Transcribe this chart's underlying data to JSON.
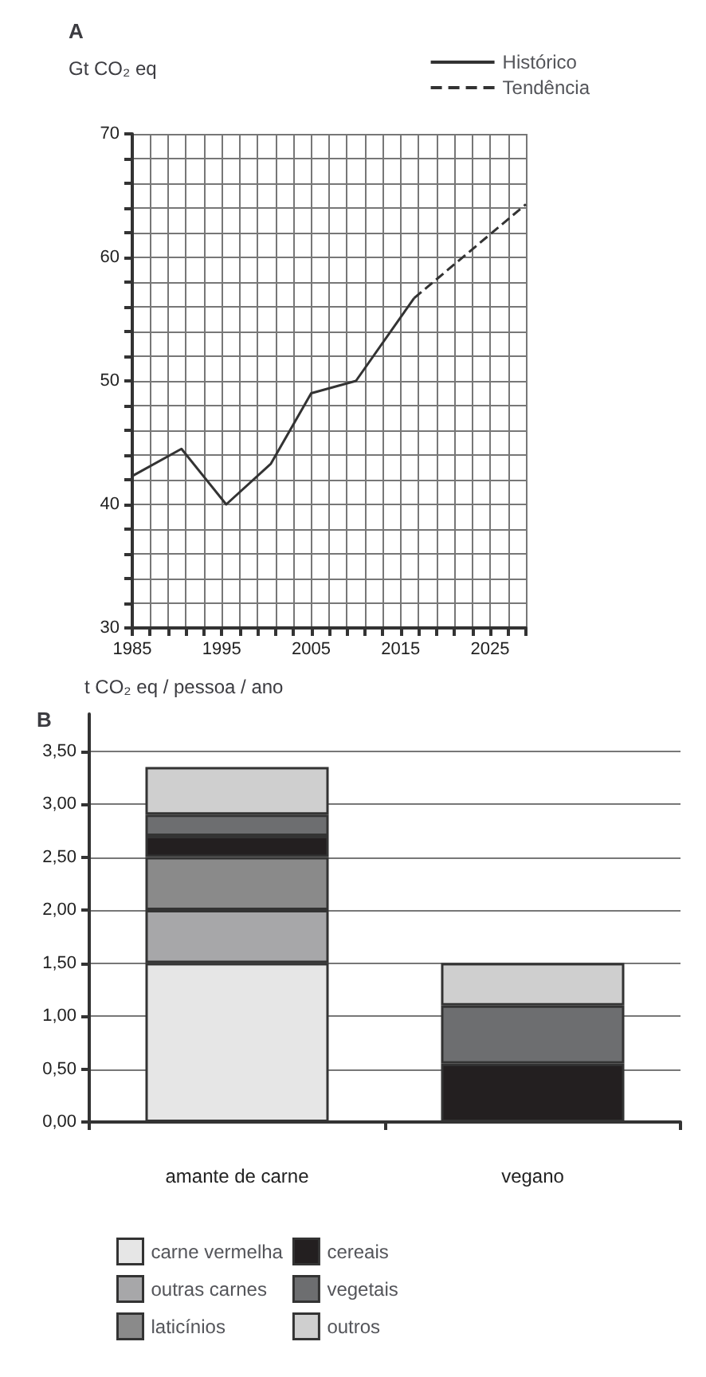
{
  "chart_data": [
    {
      "type": "line",
      "title": "A",
      "ylabel": "Gt CO₂ eq",
      "legend": "top right",
      "grid": true,
      "marker": "none",
      "xlim": [
        1985,
        2029
      ],
      "xticks": [
        1985,
        {
          "value": 1987,
          "label": null
        },
        {
          "value": 1989,
          "label": null
        },
        {
          "value": 1991,
          "label": null
        },
        {
          "value": 1993,
          "label": null
        },
        1995,
        {
          "value": 1997,
          "label": null
        },
        {
          "value": 1999,
          "label": null
        },
        {
          "value": 2001,
          "label": null
        },
        {
          "value": 2003,
          "label": null
        },
        2005,
        {
          "value": 2007,
          "label": null
        },
        {
          "value": 2009,
          "label": null
        },
        {
          "value": 2011,
          "label": null
        },
        {
          "value": 2013,
          "label": null
        },
        2015,
        {
          "value": 2017,
          "label": null
        },
        {
          "value": 2019,
          "label": null
        },
        {
          "value": 2021,
          "label": null
        },
        {
          "value": 2023,
          "label": null
        },
        2025,
        {
          "value": 2027,
          "label": null
        },
        {
          "value": 2029,
          "label": null
        }
      ],
      "ylim": [
        30,
        70
      ],
      "yticks": [
        30,
        {
          "value": 32,
          "label": null
        },
        {
          "value": 34,
          "label": null
        },
        {
          "value": 36,
          "label": null
        },
        {
          "value": 38,
          "label": null
        },
        40,
        {
          "value": 42,
          "label": null
        },
        {
          "value": 44,
          "label": null
        },
        {
          "value": 46,
          "label": null
        },
        {
          "value": 48,
          "label": null
        },
        50,
        {
          "value": 52,
          "label": null
        },
        {
          "value": 54,
          "label": null
        },
        {
          "value": 56,
          "label": null
        },
        {
          "value": 58,
          "label": null
        },
        60,
        {
          "value": 62,
          "label": null
        },
        {
          "value": 64,
          "label": null
        },
        {
          "value": 66,
          "label": null
        },
        {
          "value": 68,
          "label": null
        },
        70
      ],
      "series": [
        {
          "name": "Histórico",
          "color": "#333333",
          "line_style": "solid",
          "x": [
            1985,
            1990.5,
            1995.5,
            2000.5,
            2005,
            2010,
            2016.5
          ],
          "values": [
            42.3,
            44.5,
            40,
            43.3,
            49,
            50,
            56.7
          ]
        },
        {
          "name": "Tendência",
          "color": "#333333",
          "line_style": "dashed",
          "x": [
            2016.5,
            2029
          ],
          "values": [
            56.7,
            64.3
          ]
        }
      ]
    },
    {
      "type": "bar",
      "title": "B",
      "ylabel": "t CO₂ eq / pessoa / ano",
      "stacked": true,
      "legend": "bottom",
      "grid": "y",
      "categories": [
        "amante de carne",
        "vegano"
      ],
      "ylim": [
        0,
        3.85
      ],
      "yticks": [
        {
          "value": 0,
          "label": "0,00"
        },
        {
          "value": 0.5,
          "label": "0,50"
        },
        {
          "value": 1,
          "label": "1,00"
        },
        {
          "value": 1.5,
          "label": "1,50"
        },
        {
          "value": 2,
          "label": "2,00"
        },
        {
          "value": 2.5,
          "label": "2,50"
        },
        {
          "value": 3,
          "label": "3,00"
        },
        {
          "value": 3.5,
          "label": "3,50"
        }
      ],
      "series": [
        {
          "name": "carne vermelha",
          "color": "#e6e6e6",
          "values": [
            1.5,
            0
          ]
        },
        {
          "name": "outras carnes",
          "color": "#a7a7a9",
          "values": [
            0.5,
            0
          ]
        },
        {
          "name": "laticínios",
          "color": "#8a8a8a",
          "values": [
            0.5,
            0
          ]
        },
        {
          "name": "cereais",
          "color": "#231f20",
          "values": [
            0.2,
            0.55
          ]
        },
        {
          "name": "vegetais",
          "color": "#6d6e70",
          "values": [
            0.2,
            0.55
          ]
        },
        {
          "name": "outros",
          "color": "#cfcfcf",
          "values": [
            0.45,
            0.4
          ]
        }
      ]
    }
  ]
}
